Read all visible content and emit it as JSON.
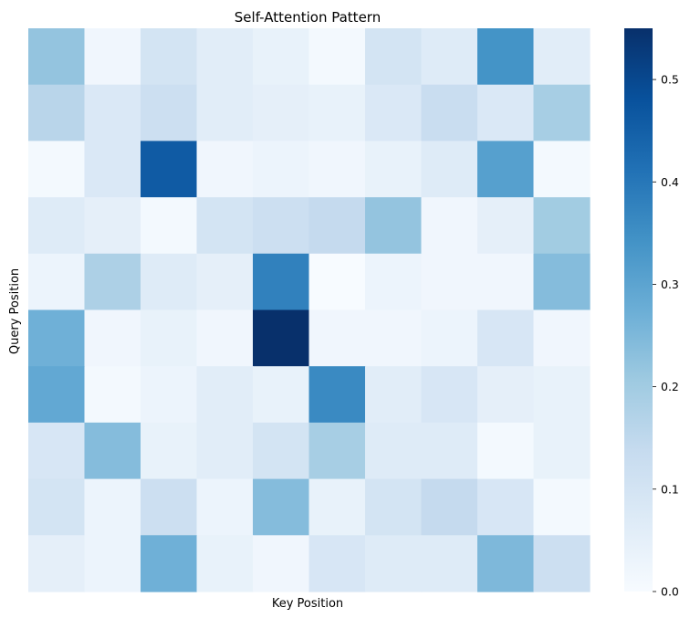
{
  "chart_data": {
    "type": "heatmap",
    "title": "Self-Attention Pattern",
    "xlabel": "Key Position",
    "ylabel": "Query Position",
    "rows": 10,
    "cols": 10,
    "values": [
      [
        0.22,
        0.02,
        0.1,
        0.06,
        0.04,
        0.01,
        0.1,
        0.07,
        0.34,
        0.06
      ],
      [
        0.16,
        0.08,
        0.12,
        0.06,
        0.05,
        0.04,
        0.08,
        0.13,
        0.08,
        0.19
      ],
      [
        0.01,
        0.08,
        0.46,
        0.02,
        0.03,
        0.02,
        0.04,
        0.07,
        0.31,
        0.01
      ],
      [
        0.07,
        0.05,
        0.01,
        0.1,
        0.12,
        0.14,
        0.22,
        0.02,
        0.05,
        0.2
      ],
      [
        0.03,
        0.18,
        0.07,
        0.05,
        0.38,
        0.0,
        0.03,
        0.02,
        0.02,
        0.24
      ],
      [
        0.27,
        0.02,
        0.04,
        0.02,
        0.55,
        0.02,
        0.02,
        0.03,
        0.09,
        0.02
      ],
      [
        0.29,
        0.01,
        0.03,
        0.06,
        0.04,
        0.36,
        0.06,
        0.09,
        0.05,
        0.04
      ],
      [
        0.09,
        0.24,
        0.04,
        0.06,
        0.1,
        0.19,
        0.07,
        0.07,
        0.01,
        0.04
      ],
      [
        0.1,
        0.03,
        0.12,
        0.03,
        0.24,
        0.04,
        0.1,
        0.14,
        0.09,
        0.01
      ],
      [
        0.05,
        0.03,
        0.27,
        0.04,
        0.02,
        0.09,
        0.07,
        0.07,
        0.25,
        0.12
      ]
    ],
    "colormap": "Blues",
    "vmin": 0.0,
    "vmax": 0.55,
    "colorbar_ticks": [
      "0.0",
      "0.1",
      "0.2",
      "0.3",
      "0.4",
      "0.5"
    ],
    "colorbar_tick_values": [
      0.0,
      0.1,
      0.2,
      0.3,
      0.4,
      0.5
    ],
    "grid": false,
    "colorbar_position": "right"
  }
}
